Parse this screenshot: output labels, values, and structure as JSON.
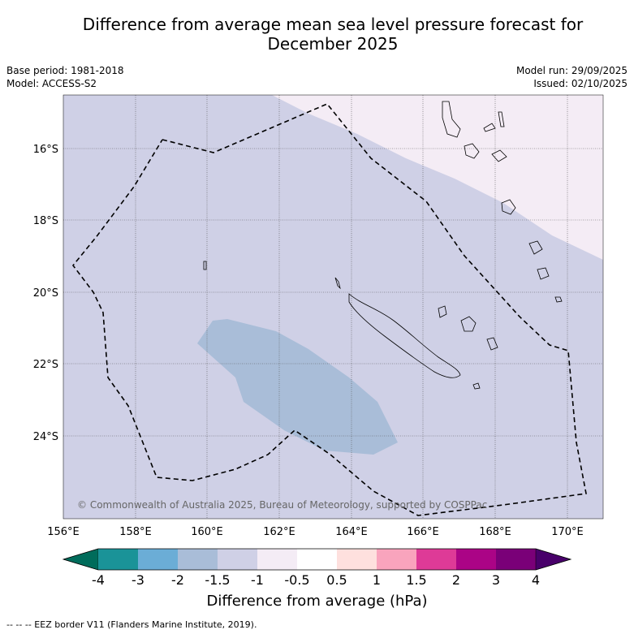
{
  "title_line1": "Difference from average mean sea level pressure forecast for",
  "title_line2": "December 2025",
  "base_period": "Base period: 1981-2018",
  "model": "Model: ACCESS-S2",
  "model_run": "Model run: 29/09/2025",
  "issued": "Issued: 02/10/2025",
  "attribution": "© Commonwealth of Australia 2025, Bureau of Meteorology, supported by COSPPac",
  "map": {
    "lon_labels": [
      "156°E",
      "158°E",
      "160°E",
      "162°E",
      "164°E",
      "166°E",
      "168°E",
      "170°E"
    ],
    "lat_labels": [
      "16°S",
      "18°S",
      "20°S",
      "22°S",
      "24°S"
    ],
    "colors": {
      "background_anomaly": "#cfd0e6",
      "northeast_anomaly": "#f4ecf5",
      "south_anomaly": "#a9bdd8"
    }
  },
  "colorbar": {
    "ticks": [
      "-4",
      "-3",
      "-2",
      "-1.5",
      "-1",
      "-0.5",
      "0.5",
      "1",
      "1.5",
      "2",
      "3",
      "4"
    ],
    "colors": [
      "#1a9398",
      "#6badd6",
      "#a9bdd8",
      "#cfd0e6",
      "#f4ecf5",
      "#ffffff",
      "#fee0de",
      "#f9a4bd",
      "#de3a97",
      "#ab0486",
      "#7a0078"
    ],
    "low_extend_color": "#006c5b",
    "high_extend_color": "#48006a",
    "label": "Difference from average (hPa)"
  },
  "footer": "--  --  -- EEZ border V11 (Flanders Marine Institute, 2019)."
}
